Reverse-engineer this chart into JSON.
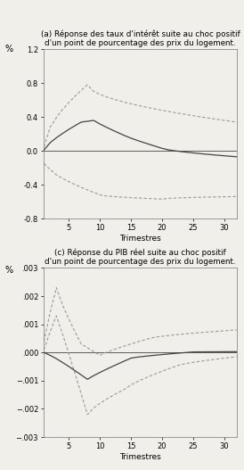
{
  "title_a": "(a) Réponse des taux d'intérêt suite au choc positif\nd'un point de pourcentage des prix du logement.",
  "title_c": "(c) Réponse du PIB réel suite au choc positif\nd'un point de pourcentage des prix du logement.",
  "pct_label": "%",
  "xlabel": "Trimestres",
  "xlim": [
    1,
    32
  ],
  "xticks": [
    5,
    10,
    15,
    20,
    25,
    30
  ],
  "ylim_a": [
    -0.8,
    1.2
  ],
  "yticks_a": [
    -0.8,
    -0.4,
    0.0,
    0.4,
    0.8,
    1.2
  ],
  "ylim_c": [
    -0.003,
    0.003
  ],
  "yticks_c": [
    -0.003,
    -0.002,
    -0.001,
    0.0,
    0.001,
    0.002,
    0.003
  ],
  "color_solid": "#444444",
  "color_dashed": "#999999",
  "background": "#f0efea"
}
